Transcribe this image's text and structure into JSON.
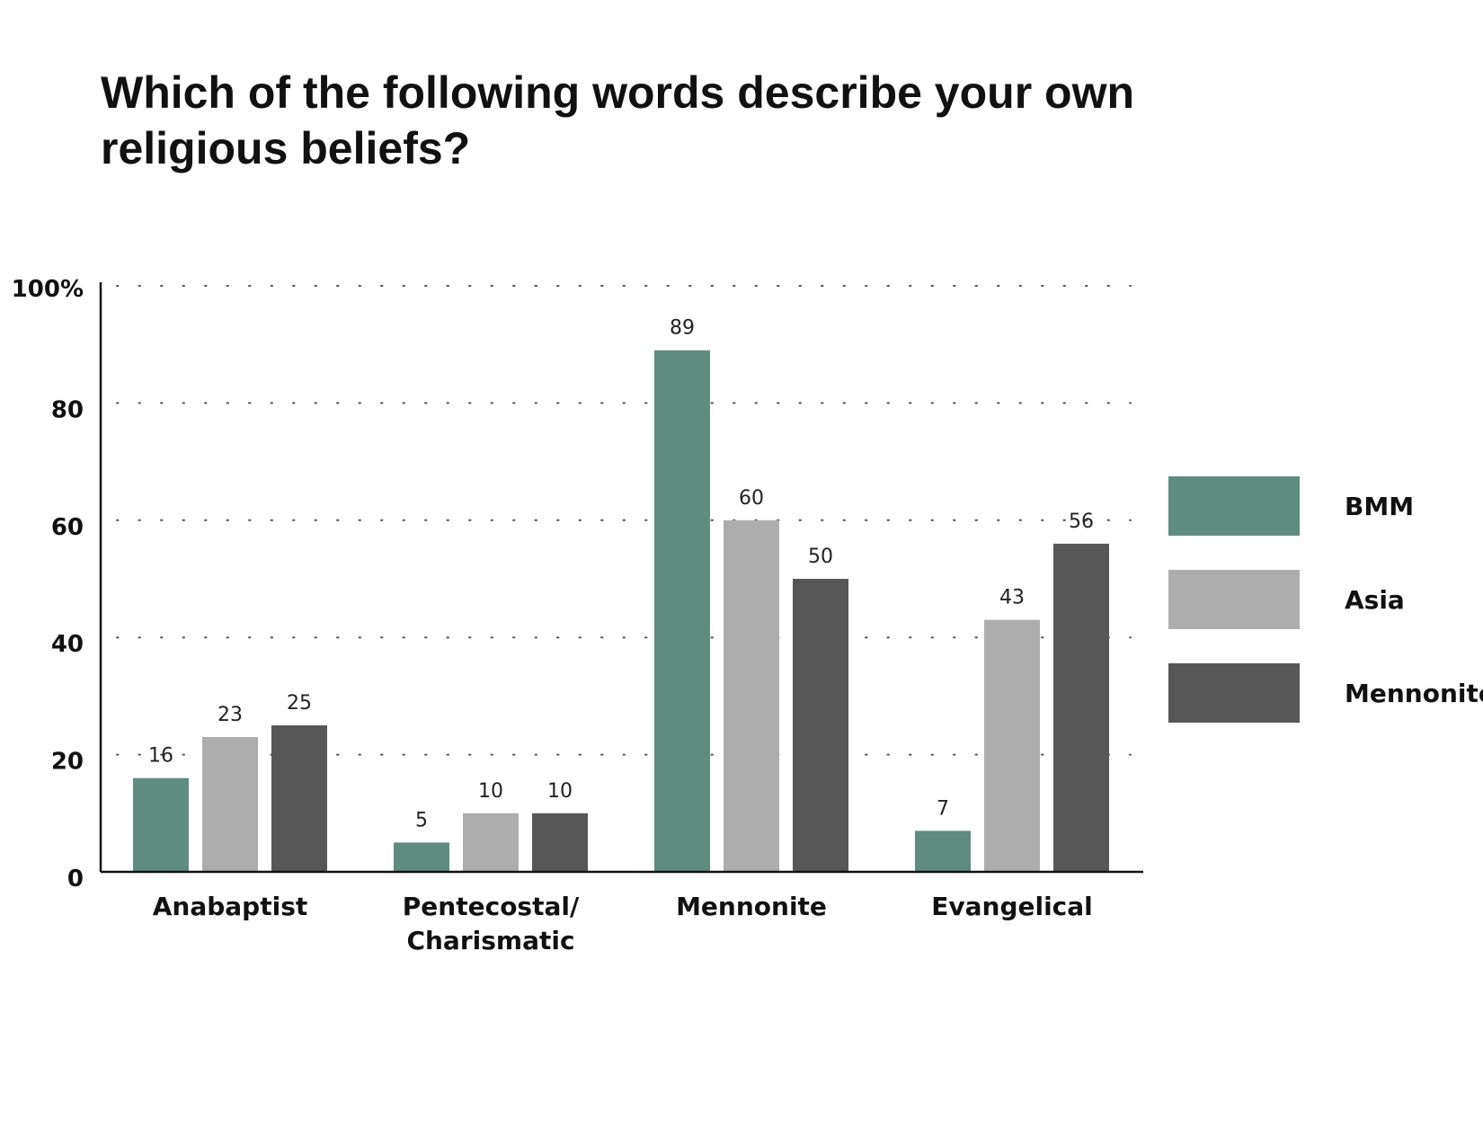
{
  "chart_data": {
    "type": "bar",
    "title": "Which of the following words describe your own religious beliefs?",
    "categories": [
      "Anabaptist",
      "Pentecostal/\nCharismatic",
      "Mennonite",
      "Evangelical"
    ],
    "series": [
      {
        "name": "BMM",
        "color": "#5e8c7f",
        "values": [
          16,
          5,
          89,
          7
        ]
      },
      {
        "name": "Asia",
        "color": "#adadad",
        "values": [
          23,
          10,
          60,
          43
        ]
      },
      {
        "name": "Mennonite",
        "color": "#575757",
        "values": [
          25,
          10,
          50,
          56
        ]
      }
    ],
    "ylim": [
      0,
      100
    ],
    "yticks": [
      0,
      20,
      40,
      60,
      80,
      100
    ],
    "ytick_labels": [
      "0",
      "20",
      "40",
      "60",
      "80",
      "100%"
    ],
    "grid": "dotted-horizontal",
    "legend": "right",
    "xlabel": "",
    "ylabel": ""
  }
}
